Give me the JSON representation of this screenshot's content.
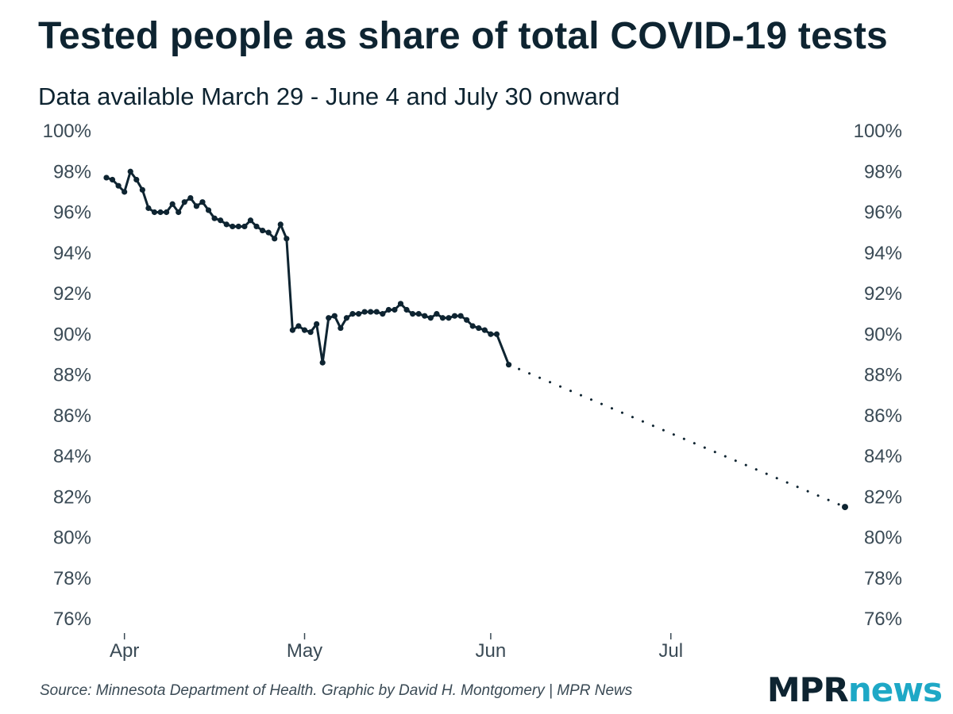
{
  "title": "Tested people as share of total COVID-19 tests",
  "subtitle": "Data available March 29 - June 4 and July 30 onward",
  "source": "Source: Minnesota Department of Health. Graphic by David H. Montgomery | MPR News",
  "logo": {
    "part1": "MPR",
    "part2": "news"
  },
  "colors": {
    "line": "#0e2431",
    "text": "#3a4a55",
    "logo_accent": "#1ea8c6"
  },
  "chart_data": {
    "type": "line",
    "title": "Tested people as share of total COVID-19 tests",
    "subtitle": "Data available March 29 - June 4 and July 30 onward",
    "xlabel": "",
    "ylabel": "",
    "ylim": [
      76,
      100
    ],
    "y_ticks": [
      "100%",
      "98%",
      "96%",
      "94%",
      "92%",
      "90%",
      "88%",
      "86%",
      "84%",
      "82%",
      "80%",
      "78%",
      "76%"
    ],
    "y_tick_values": [
      100,
      98,
      96,
      94,
      92,
      90,
      88,
      86,
      84,
      82,
      80,
      78,
      76
    ],
    "x_ticks": [
      {
        "label": "Apr",
        "date": "2020-04-01"
      },
      {
        "label": "May",
        "date": "2020-05-01"
      },
      {
        "label": "Jun",
        "date": "2020-06-01"
      },
      {
        "label": "Jul",
        "date": "2020-07-01"
      }
    ],
    "xlim": [
      "2020-03-29",
      "2020-07-30"
    ],
    "grid": false,
    "y_axis_both_sides": true,
    "series": [
      {
        "style": "solid-with-markers",
        "points": [
          [
            "2020-03-29",
            97.7
          ],
          [
            "2020-03-30",
            97.6
          ],
          [
            "2020-03-31",
            97.3
          ],
          [
            "2020-04-01",
            97.0
          ],
          [
            "2020-04-02",
            98.0
          ],
          [
            "2020-04-03",
            97.6
          ],
          [
            "2020-04-04",
            97.1
          ],
          [
            "2020-04-05",
            96.2
          ],
          [
            "2020-04-06",
            96.0
          ],
          [
            "2020-04-07",
            96.0
          ],
          [
            "2020-04-08",
            96.0
          ],
          [
            "2020-04-09",
            96.4
          ],
          [
            "2020-04-10",
            96.0
          ],
          [
            "2020-04-11",
            96.5
          ],
          [
            "2020-04-12",
            96.7
          ],
          [
            "2020-04-13",
            96.3
          ],
          [
            "2020-04-14",
            96.5
          ],
          [
            "2020-04-15",
            96.1
          ],
          [
            "2020-04-16",
            95.7
          ],
          [
            "2020-04-17",
            95.6
          ],
          [
            "2020-04-18",
            95.4
          ],
          [
            "2020-04-19",
            95.3
          ],
          [
            "2020-04-20",
            95.3
          ],
          [
            "2020-04-21",
            95.3
          ],
          [
            "2020-04-22",
            95.6
          ],
          [
            "2020-04-23",
            95.3
          ],
          [
            "2020-04-24",
            95.1
          ],
          [
            "2020-04-25",
            95.0
          ],
          [
            "2020-04-26",
            94.7
          ],
          [
            "2020-04-27",
            95.4
          ],
          [
            "2020-04-28",
            94.7
          ],
          [
            "2020-04-29",
            90.2
          ],
          [
            "2020-04-30",
            90.4
          ],
          [
            "2020-05-01",
            90.2
          ],
          [
            "2020-05-02",
            90.1
          ],
          [
            "2020-05-03",
            90.5
          ],
          [
            "2020-05-04",
            88.6
          ],
          [
            "2020-05-05",
            90.8
          ],
          [
            "2020-05-06",
            90.9
          ],
          [
            "2020-05-07",
            90.3
          ],
          [
            "2020-05-08",
            90.8
          ],
          [
            "2020-05-09",
            91.0
          ],
          [
            "2020-05-10",
            91.0
          ],
          [
            "2020-05-11",
            91.1
          ],
          [
            "2020-05-12",
            91.1
          ],
          [
            "2020-05-13",
            91.1
          ],
          [
            "2020-05-14",
            91.0
          ],
          [
            "2020-05-15",
            91.2
          ],
          [
            "2020-05-16",
            91.2
          ],
          [
            "2020-05-17",
            91.5
          ],
          [
            "2020-05-18",
            91.2
          ],
          [
            "2020-05-19",
            91.0
          ],
          [
            "2020-05-20",
            91.0
          ],
          [
            "2020-05-21",
            90.9
          ],
          [
            "2020-05-22",
            90.8
          ],
          [
            "2020-05-23",
            91.0
          ],
          [
            "2020-05-24",
            90.8
          ],
          [
            "2020-05-25",
            90.8
          ],
          [
            "2020-05-26",
            90.9
          ],
          [
            "2020-05-27",
            90.9
          ],
          [
            "2020-05-28",
            90.7
          ],
          [
            "2020-05-29",
            90.4
          ],
          [
            "2020-05-30",
            90.3
          ],
          [
            "2020-05-31",
            90.2
          ],
          [
            "2020-06-01",
            90.0
          ],
          [
            "2020-06-02",
            90.0
          ],
          [
            "2020-06-04",
            88.5
          ]
        ]
      },
      {
        "style": "dotted-gap",
        "points": [
          [
            "2020-06-04",
            88.5
          ],
          [
            "2020-07-30",
            81.5
          ]
        ]
      },
      {
        "style": "marker-only",
        "points": [
          [
            "2020-07-30",
            81.5
          ]
        ]
      }
    ]
  }
}
